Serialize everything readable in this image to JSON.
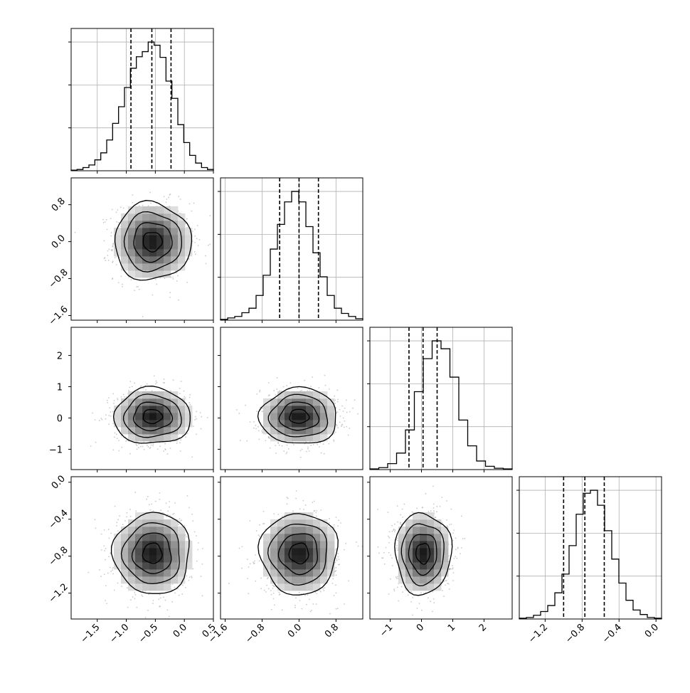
{
  "chart_data": {
    "type": "corner",
    "grid": true,
    "parameters": [
      {
        "range": [
          -1.95,
          0.5
        ],
        "ticks": [
          -1.5,
          -1.0,
          -0.5,
          0.0,
          0.5
        ],
        "tick_labels": [
          "−1.5",
          "−1.0",
          "−0.5",
          "0.0",
          "0.5"
        ],
        "quantiles": [
          -0.92,
          -0.56,
          -0.23
        ],
        "histogram": [
          1,
          2,
          5,
          9,
          17,
          28,
          48,
          74,
          100,
          130,
          160,
          178,
          186,
          201,
          196,
          177,
          140,
          113,
          72,
          44,
          24,
          12,
          5,
          2
        ]
      },
      {
        "range": [
          -1.7,
          1.38
        ],
        "ticks": [
          -1.6,
          -0.8,
          0.0,
          0.8
        ],
        "tick_labels": [
          "−1.6",
          "−0.8",
          "0.0",
          "0.8"
        ],
        "quantiles": [
          -0.42,
          0.0,
          0.42
        ],
        "histogram": [
          1,
          3,
          5,
          10,
          16,
          33,
          60,
          95,
          128,
          158,
          172,
          158,
          125,
          90,
          58,
          33,
          16,
          9,
          5,
          2
        ]
      },
      {
        "range": [
          -1.65,
          2.9
        ],
        "ticks": [
          -1,
          0,
          1,
          2
        ],
        "tick_labels": [
          "−1",
          "0",
          "1",
          "2"
        ],
        "quantiles": [
          -0.4,
          0.05,
          0.5
        ],
        "histogram": [
          1,
          3,
          9,
          25,
          60,
          118,
          168,
          195,
          183,
          140,
          75,
          36,
          13,
          5,
          2,
          1
        ]
      },
      {
        "range": [
          -1.48,
          0.06
        ],
        "ticks": [
          -1.2,
          -0.8,
          -0.4,
          0.0
        ],
        "tick_labels": [
          "−1.2",
          "−0.8",
          "−0.4",
          "0.0"
        ],
        "quantiles": [
          -1.0,
          -0.77,
          -0.56
        ],
        "histogram": [
          1,
          2,
          5,
          10,
          18,
          35,
          60,
          98,
          140,
          168,
          172,
          152,
          118,
          80,
          48,
          25,
          12,
          6,
          2,
          1
        ]
      }
    ],
    "y_axis_labels_shown": [
      {
        "param": 1,
        "ticks": [
          -1.6,
          -0.8,
          0.0,
          0.8
        ],
        "tick_labels": [
          "−1.6",
          "−0.8",
          "0.0",
          "0.8"
        ]
      },
      {
        "param": 2,
        "ticks": [
          -1,
          0,
          1,
          2
        ],
        "tick_labels": [
          "−1",
          "0",
          "1",
          "2"
        ]
      },
      {
        "param": 3,
        "ticks": [
          -1.2,
          -0.8,
          -0.4,
          0.0
        ],
        "tick_labels": [
          "−1.2",
          "−0.8",
          "−0.4",
          "0.0"
        ]
      }
    ],
    "pairs": [
      {
        "row": 1,
        "col": 0,
        "center": [
          -0.55,
          0.0
        ],
        "sigma": [
          0.33,
          0.42
        ]
      },
      {
        "row": 2,
        "col": 0,
        "center": [
          -0.55,
          0.05
        ],
        "sigma": [
          0.33,
          0.45
        ]
      },
      {
        "row": 2,
        "col": 1,
        "center": [
          0.0,
          0.05
        ],
        "sigma": [
          0.42,
          0.45
        ]
      },
      {
        "row": 3,
        "col": 0,
        "center": [
          -0.55,
          -0.77
        ],
        "sigma": [
          0.33,
          0.22
        ]
      },
      {
        "row": 3,
        "col": 1,
        "center": [
          0.0,
          -0.77
        ],
        "sigma": [
          0.42,
          0.22
        ]
      },
      {
        "row": 3,
        "col": 2,
        "center": [
          0.05,
          -0.77
        ],
        "sigma": [
          0.45,
          0.22
        ]
      }
    ],
    "contour_levels_sigma": [
      0.5,
      1.0,
      1.5,
      2.0
    ]
  }
}
